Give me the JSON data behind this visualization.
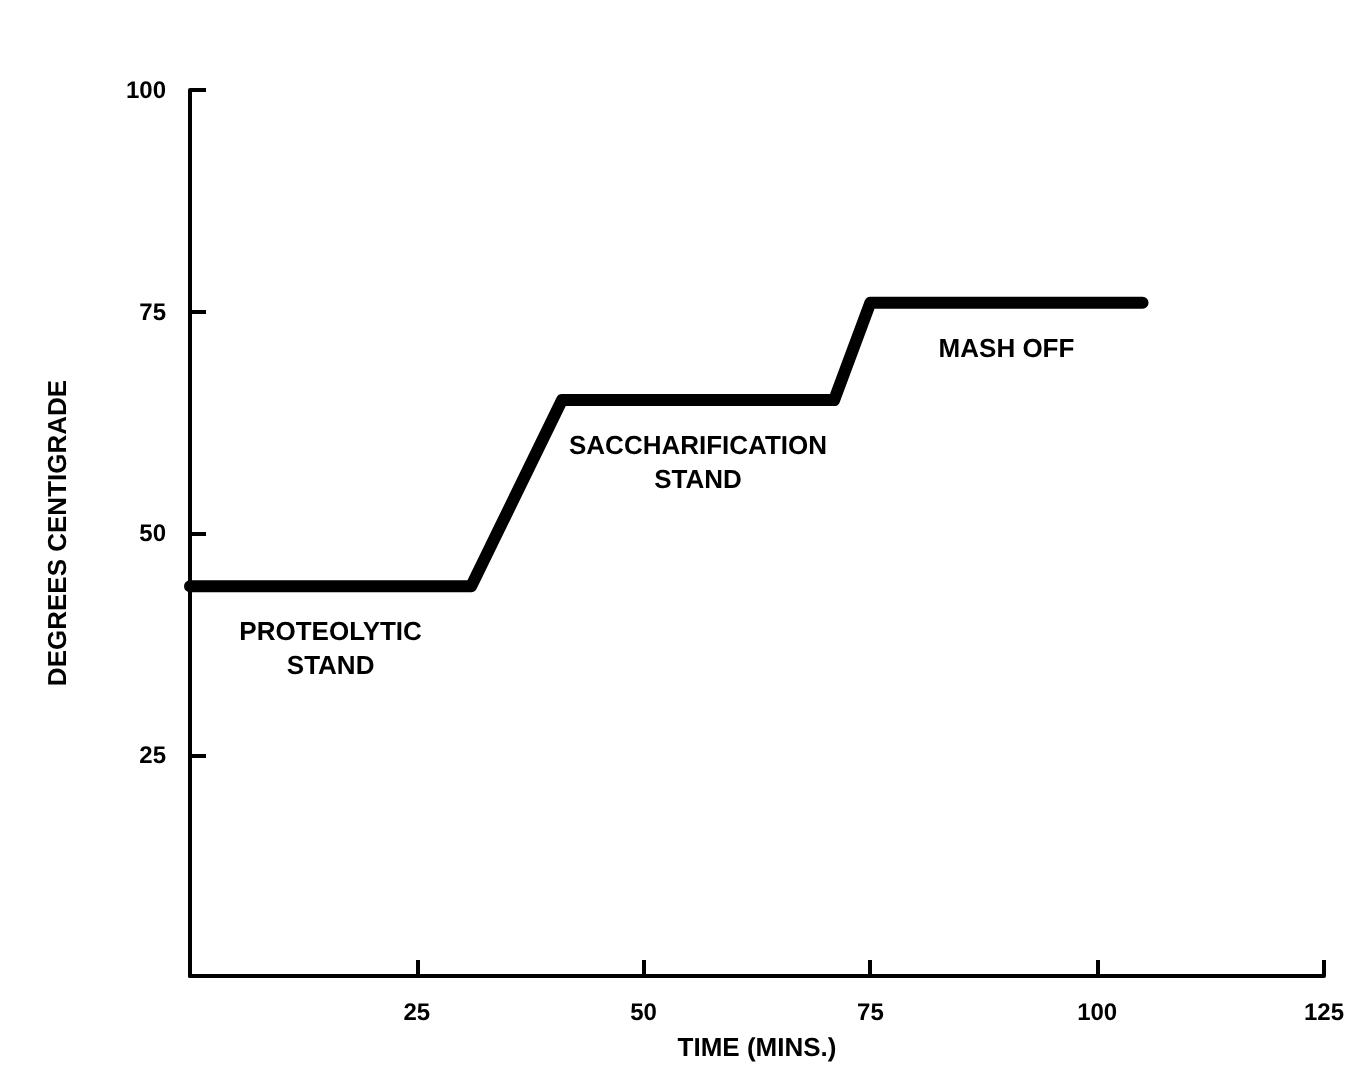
{
  "chart_data": {
    "type": "line",
    "xlabel": "TIME (MINS.)",
    "ylabel": "DEGREES CENTIGRADE",
    "x": [
      0,
      31,
      41,
      71,
      75,
      105
    ],
    "series": [
      {
        "color": "#000000",
        "values": [
          44,
          44,
          65,
          65,
          76,
          76
        ]
      }
    ],
    "xlim": [
      0,
      125
    ],
    "xticks": [
      25,
      50,
      75,
      100,
      125
    ],
    "ylim": [
      0,
      100
    ],
    "yticks": [
      25,
      50,
      75,
      100
    ],
    "grid": false,
    "marker": "none",
    "line_style": "solid",
    "annotations": [
      "PROTEOLYTIC\nSTAND",
      "SACCHARIFICATION\nSTAND",
      "MASH OFF"
    ]
  }
}
